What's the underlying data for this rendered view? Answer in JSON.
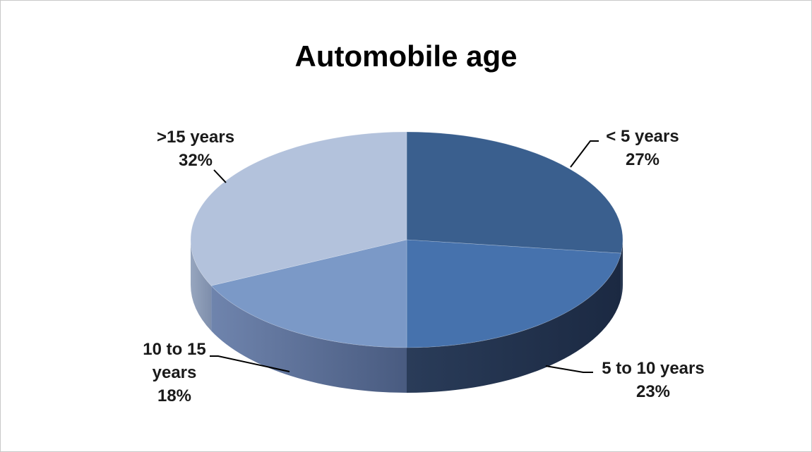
{
  "chart_data": {
    "type": "pie",
    "title": "Automobile age",
    "categories": [
      "< 5 years",
      "5 to 10 years",
      "10 to 15 years",
      ">15 years"
    ],
    "values": [
      27,
      23,
      18,
      32
    ],
    "value_labels": [
      "27%",
      "23%",
      "18%",
      "32%"
    ],
    "label_lines": [
      [
        "< 5 years",
        "27%"
      ],
      [
        "5 to 10 years",
        "23%"
      ],
      [
        "10 to 15",
        "years",
        "18%"
      ],
      [
        ">15 years",
        "32%"
      ]
    ],
    "colors": [
      "#3a5f8e",
      "#4672ad",
      "#7b99c7",
      "#b3c2dc"
    ],
    "side_colors": [
      "#22324a",
      "#22324a",
      "#5a6d93",
      "#8d9cb6"
    ],
    "legend": "none",
    "style": "3d-pie"
  }
}
